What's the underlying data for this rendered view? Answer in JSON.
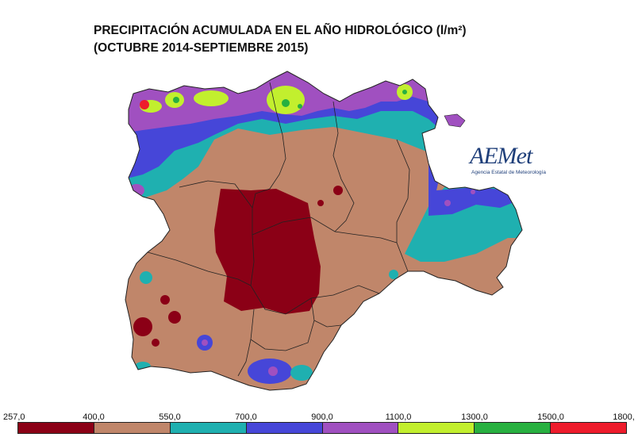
{
  "title": {
    "line1": "PRECIPITACIÓN ACUMULADA EN EL AÑO HIDROLÓGICO  (l/m²)",
    "line2": "(OCTUBRE 2014-SEPTIEMBRE 2015)"
  },
  "logo": {
    "name": "AEMet",
    "subtitle": "Agencia Estatal de Meteorología"
  },
  "legend": {
    "ticks": [
      "257,0",
      "400,0",
      "550,0",
      "700,0",
      "900,0",
      "1100,0",
      "1300,0",
      "1500,0",
      "1800,"
    ],
    "classes": [
      {
        "from": 257.0,
        "to": 400.0,
        "color": "#8b0016"
      },
      {
        "from": 400.0,
        "to": 550.0,
        "color": "#c0866a"
      },
      {
        "from": 550.0,
        "to": 700.0,
        "color": "#1fb0b0"
      },
      {
        "from": 700.0,
        "to": 900.0,
        "color": "#4646d8"
      },
      {
        "from": 900.0,
        "to": 1100.0,
        "color": "#a050c0"
      },
      {
        "from": 1100.0,
        "to": 1300.0,
        "color": "#c2ef2e"
      },
      {
        "from": 1300.0,
        "to": 1500.0,
        "color": "#28b040"
      },
      {
        "from": 1500.0,
        "to": 1800.0,
        "color": "#ee1c2c"
      }
    ]
  }
}
